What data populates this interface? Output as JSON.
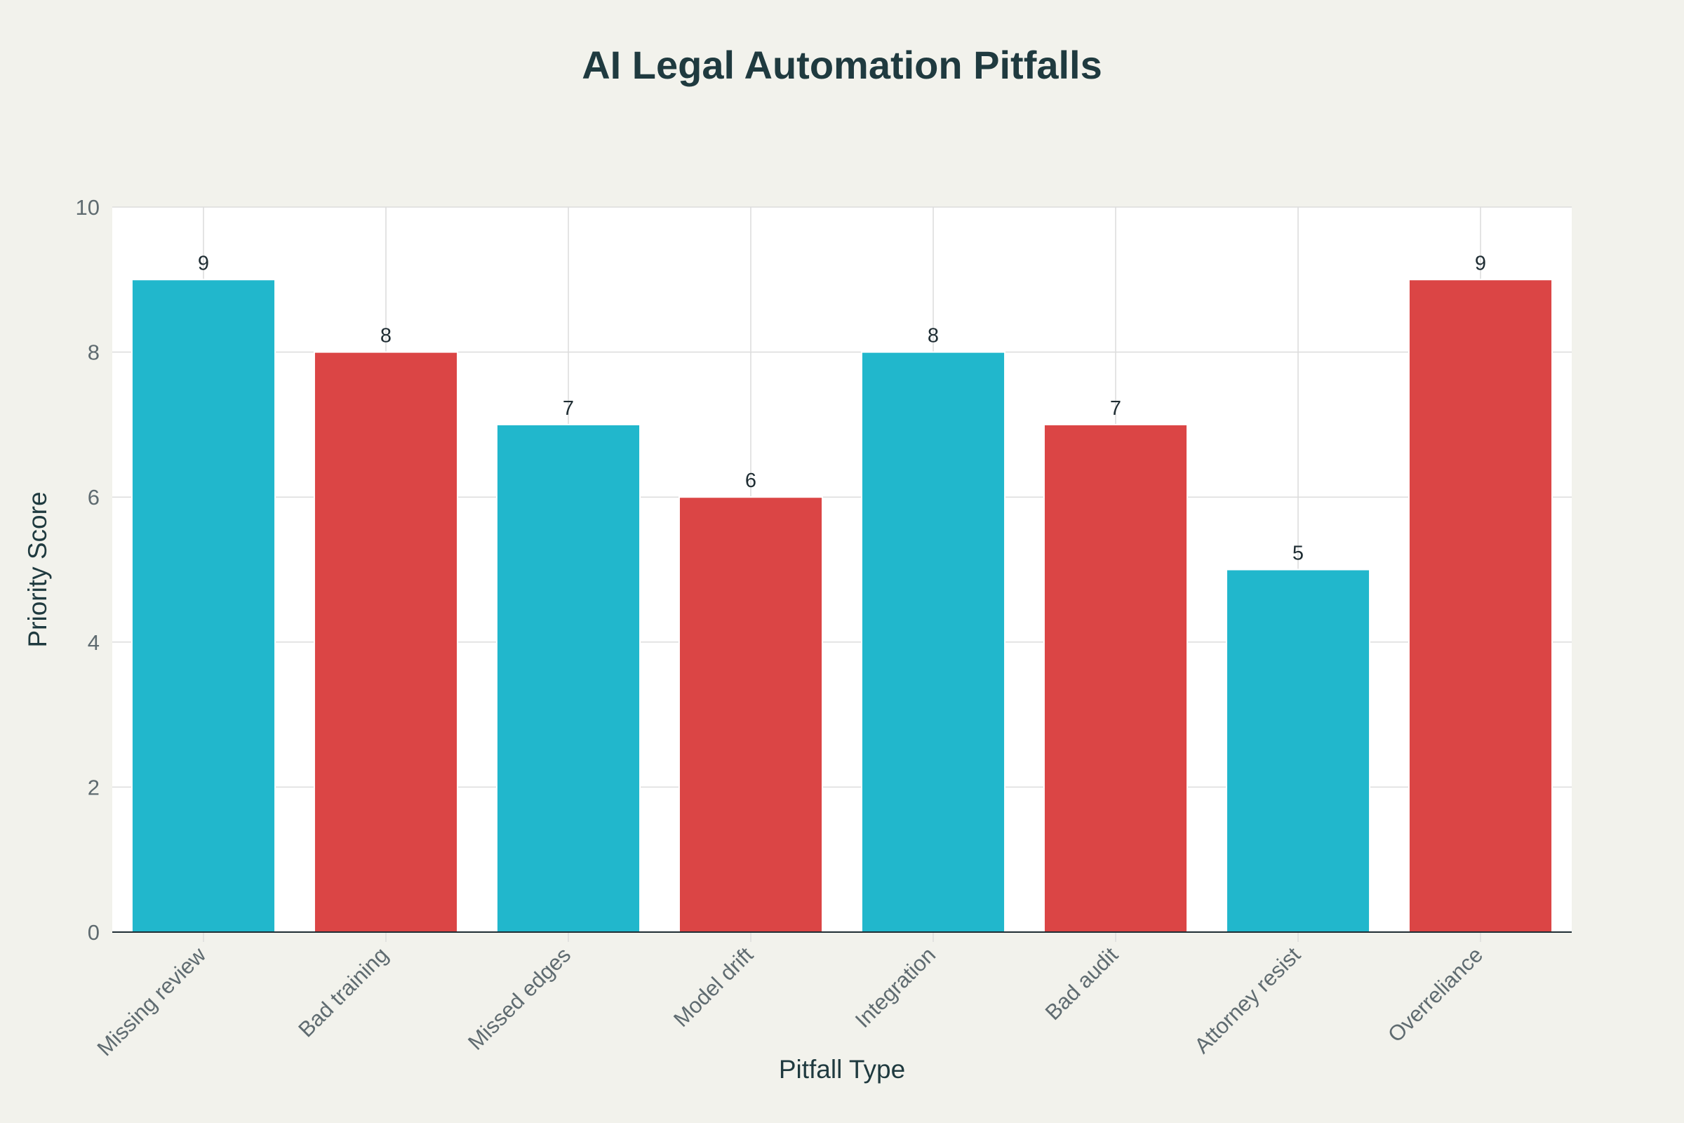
{
  "chart_data": {
    "type": "bar",
    "title": "AI Legal Automation Pitfalls",
    "xlabel": "Pitfall Type",
    "ylabel": "Priority Score",
    "ylim": [
      0,
      10
    ],
    "yticks": [
      0,
      2,
      4,
      6,
      8,
      10
    ],
    "grid": true,
    "categories": [
      "Missing review",
      "Bad training",
      "Missed edges",
      "Model drift",
      "Integration",
      "Bad audit",
      "Attorney resist",
      "Overreliance"
    ],
    "values": [
      9,
      8,
      7,
      6,
      8,
      7,
      5,
      9
    ],
    "bar_colors": [
      "#21b7cc",
      "#db4545",
      "#21b7cc",
      "#db4545",
      "#21b7cc",
      "#db4545",
      "#21b7cc",
      "#db4545"
    ]
  },
  "colors": {
    "background": "#f2f2ec",
    "plot_background": "#ffffff",
    "title": "#1f3a3f",
    "axis_text": "#5f6b70",
    "grid": "#dcdcdc"
  }
}
